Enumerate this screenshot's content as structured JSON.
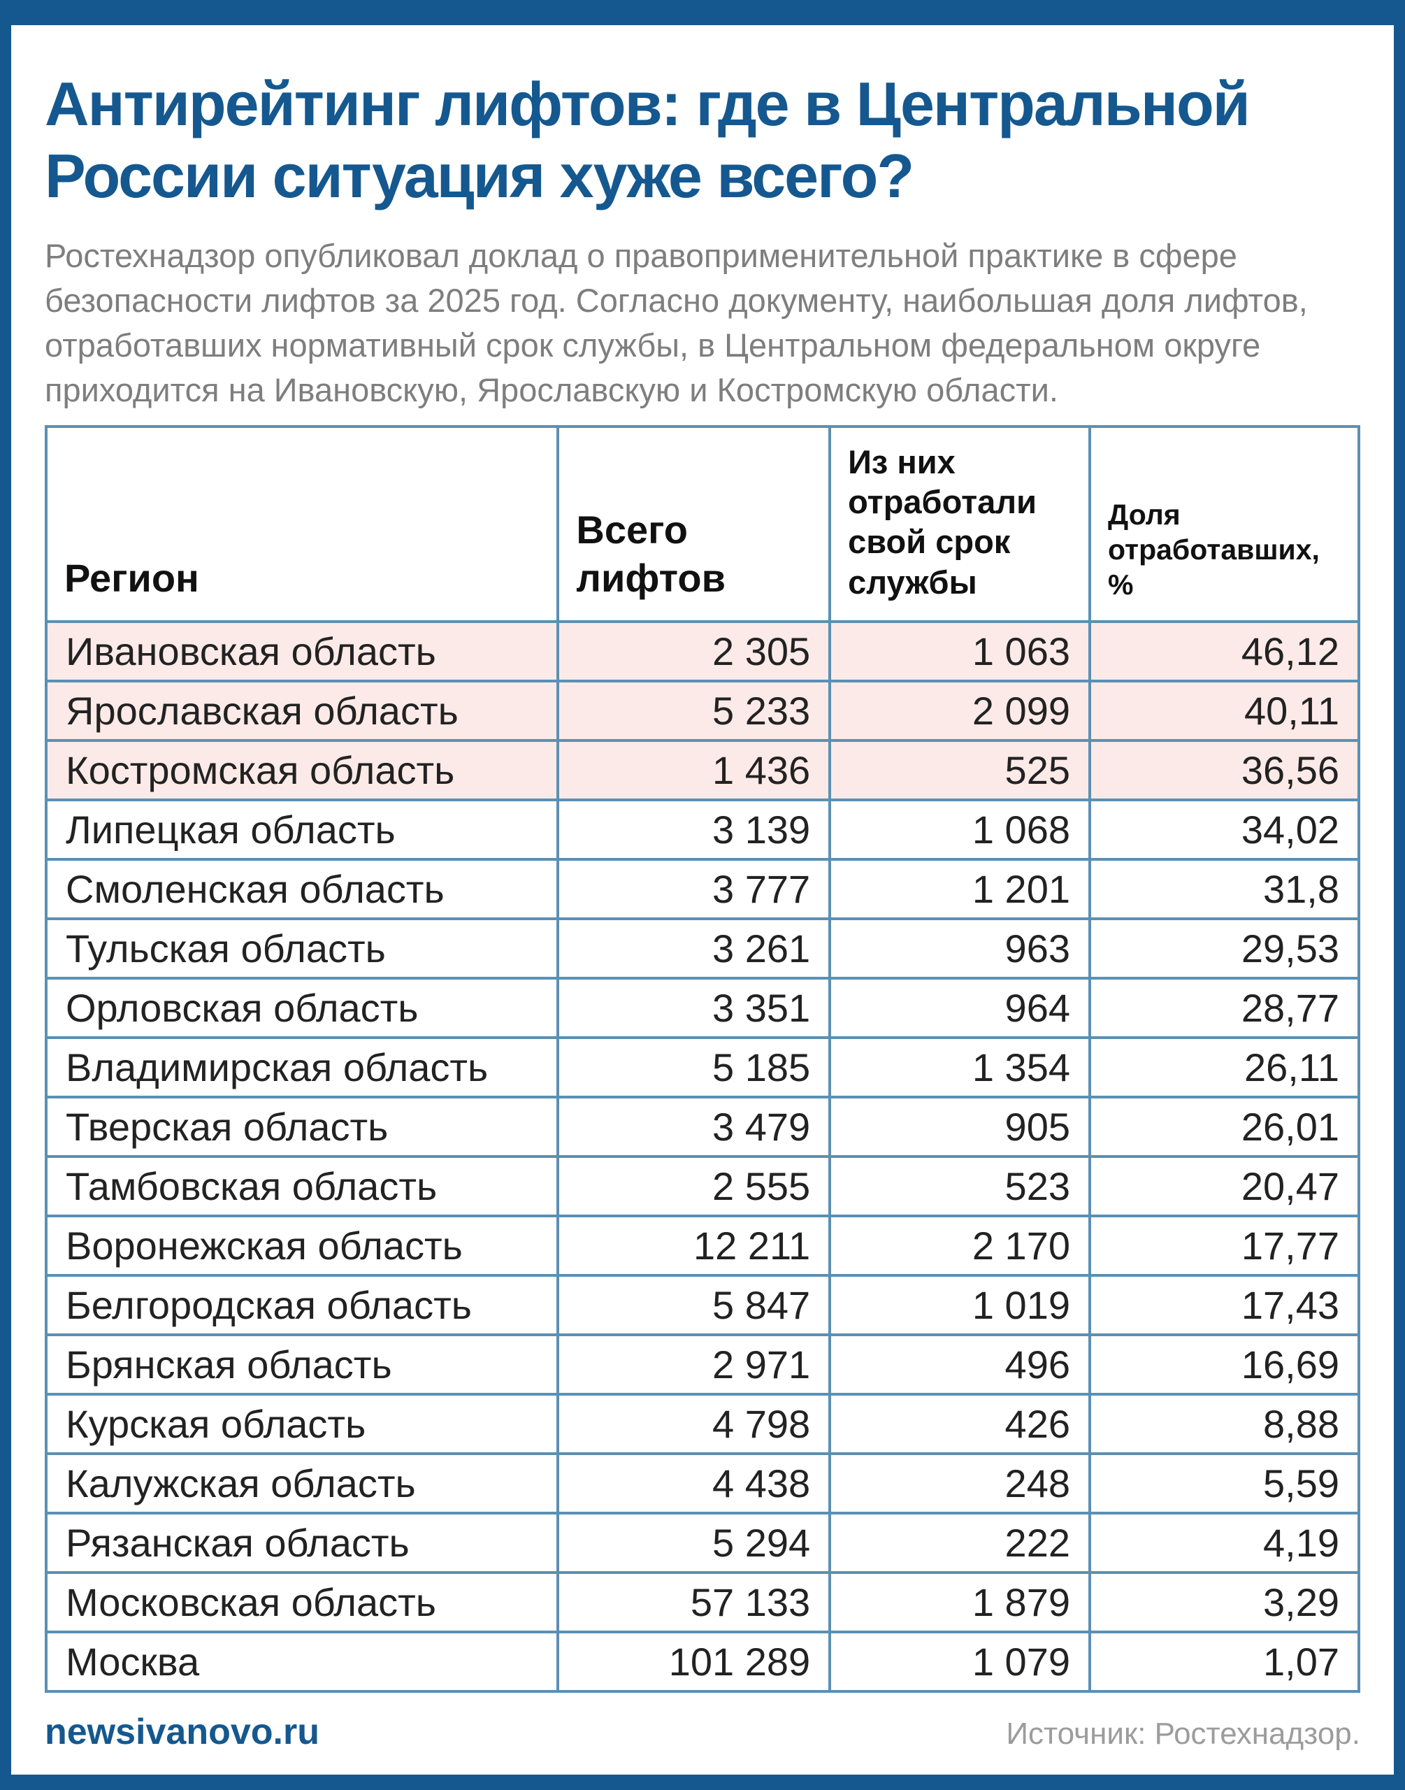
{
  "title": {
    "line1": "Антирейтинг лифтов: где в Центральной",
    "line2": "России ситуация хуже всего?"
  },
  "intro": "Ростехнадзор опубликовал доклад о правоприменительной практике в сфере безопасности лифтов за 2025 год. Согласно документу, наибольшая доля лифтов, отработавших нормативный срок службы, в Центральном федеральном округе приходится на Ивановскую, Ярославскую и Костромскую области.",
  "table": {
    "headers": [
      "Регион",
      "Всего лифтов",
      "Из них отработали свой срок службы",
      "Доля отработавших, %"
    ],
    "rows": [
      {
        "region": "Ивановская область",
        "total": "2 305",
        "expired": "1 063",
        "share": "46,12",
        "highlighted": true
      },
      {
        "region": "Ярославская область",
        "total": "5 233",
        "expired": "2 099",
        "share": "40,11",
        "highlighted": true
      },
      {
        "region": "Костромская область",
        "total": "1 436",
        "expired": "525",
        "share": "36,56",
        "highlighted": true
      },
      {
        "region": "Липецкая область",
        "total": "3 139",
        "expired": "1 068",
        "share": "34,02",
        "highlighted": false
      },
      {
        "region": "Смоленская область",
        "total": "3 777",
        "expired": "1 201",
        "share": "31,8",
        "highlighted": false
      },
      {
        "region": "Тульская область",
        "total": "3 261",
        "expired": "963",
        "share": "29,53",
        "highlighted": false
      },
      {
        "region": "Орловская область",
        "total": "3 351",
        "expired": "964",
        "share": "28,77",
        "highlighted": false
      },
      {
        "region": "Владимирская область",
        "total": "5 185",
        "expired": "1 354",
        "share": "26,11",
        "highlighted": false
      },
      {
        "region": "Тверская область",
        "total": "3 479",
        "expired": "905",
        "share": "26,01",
        "highlighted": false
      },
      {
        "region": "Тамбовская область",
        "total": "2 555",
        "expired": "523",
        "share": "20,47",
        "highlighted": false
      },
      {
        "region": "Воронежская область",
        "total": "12 211",
        "expired": "2 170",
        "share": "17,77",
        "highlighted": false
      },
      {
        "region": "Белгородская область",
        "total": "5 847",
        "expired": "1 019",
        "share": "17,43",
        "highlighted": false
      },
      {
        "region": "Брянская область",
        "total": "2 971",
        "expired": "496",
        "share": "16,69",
        "highlighted": false
      },
      {
        "region": "Курская область",
        "total": "4 798",
        "expired": "426",
        "share": "8,88",
        "highlighted": false
      },
      {
        "region": "Калужская область",
        "total": "4 438",
        "expired": "248",
        "share": "5,59",
        "highlighted": false
      },
      {
        "region": "Рязанская область",
        "total": "5 294",
        "expired": "222",
        "share": "4,19",
        "highlighted": false
      },
      {
        "region": "Московская область",
        "total": "57 133",
        "expired": "1 879",
        "share": "3,29",
        "highlighted": false
      },
      {
        "region": "Москва",
        "total": "101 289",
        "expired": "1 079",
        "share": "1,07",
        "highlighted": false
      }
    ]
  },
  "footer": {
    "brand": "newsivanovo.ru",
    "source": "Источник: Ростехнадзор."
  },
  "colors": {
    "frame_blue": "#15588F",
    "title_blue": "#15588F",
    "table_border": "#5B90B4",
    "highlight_pink": "#FBEAE8",
    "intro_gray": "#7E7E7E",
    "source_gray": "#9C9C9C"
  },
  "chart_data": {
    "type": "table",
    "title": "Антирейтинг лифтов: где в Центральной России ситуация хуже всего?",
    "columns": [
      "Регион",
      "Всего лифтов",
      "Из них отработали свой срок службы",
      "Доля отработавших, %"
    ],
    "rows": [
      [
        "Ивановская область",
        2305,
        1063,
        46.12
      ],
      [
        "Ярославская область",
        5233,
        2099,
        40.11
      ],
      [
        "Костромская область",
        1436,
        525,
        36.56
      ],
      [
        "Липецкая область",
        3139,
        1068,
        34.02
      ],
      [
        "Смоленская область",
        3777,
        1201,
        31.8
      ],
      [
        "Тульская область",
        3261,
        963,
        29.53
      ],
      [
        "Орловская область",
        3351,
        964,
        28.77
      ],
      [
        "Владимирская область",
        5185,
        1354,
        26.11
      ],
      [
        "Тверская область",
        3479,
        905,
        26.01
      ],
      [
        "Тамбовская область",
        2555,
        523,
        20.47
      ],
      [
        "Воронежская область",
        12211,
        2170,
        17.77
      ],
      [
        "Белгородская область",
        5847,
        1019,
        17.43
      ],
      [
        "Брянская область",
        2971,
        496,
        16.69
      ],
      [
        "Курская область",
        4798,
        426,
        8.88
      ],
      [
        "Калужская область",
        4438,
        248,
        5.59
      ],
      [
        "Рязанская область",
        5294,
        222,
        4.19
      ],
      [
        "Московская область",
        57133,
        1879,
        3.29
      ],
      [
        "Москва",
        101289,
        1079,
        1.07
      ]
    ],
    "highlighted_rows": [
      0,
      1,
      2
    ],
    "sorted_by": "Доля отработавших, % (по убыванию)"
  }
}
